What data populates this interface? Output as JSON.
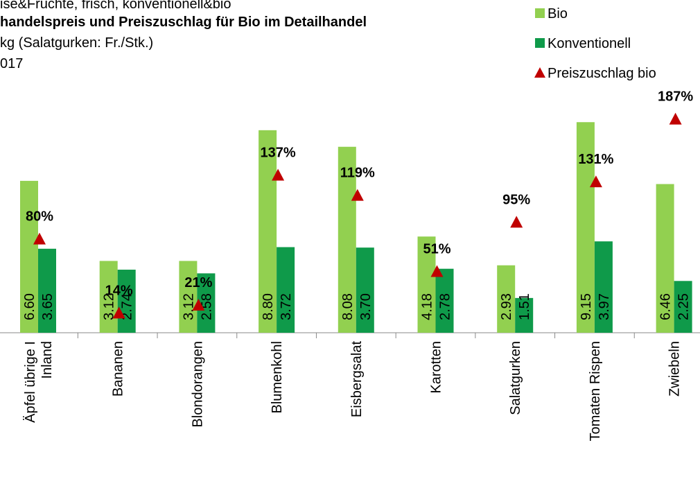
{
  "chart_data": {
    "type": "bar",
    "title_lines": [
      "ise&Früchte, frisch, konventionell&bio",
      "handelspreis und Preiszuschlag für Bio im Detailhandel",
      "kg (Salatgurken: Fr./Stk.)",
      "017"
    ],
    "categories": [
      "Äpfel übrige I\nInland",
      "Bananen",
      "Blondorangen",
      "Blumenkohl",
      "Eisbergsalat",
      "Karotten",
      "Salatgurken",
      "Tomaten Rispen",
      "Zwiebeln"
    ],
    "series": [
      {
        "name": "Bio",
        "color": "#92d050",
        "values": [
          6.6,
          3.12,
          3.12,
          8.8,
          8.08,
          4.18,
          2.93,
          9.15,
          6.46
        ],
        "value_labels": [
          "6.60",
          "3.12",
          "3.12",
          "8.80",
          "8.08",
          "4.18",
          "2.93",
          "9.15",
          "6.46"
        ]
      },
      {
        "name": "Konventionell",
        "color": "#0f9a4a",
        "values": [
          3.65,
          2.74,
          2.58,
          3.72,
          3.7,
          2.78,
          1.51,
          3.97,
          2.25
        ],
        "value_labels": [
          "3.65",
          "2.74",
          "2.58",
          "3.72",
          "3.70",
          "2.78",
          "1.51",
          "3.97",
          "2.25"
        ]
      },
      {
        "name": "Preiszuschlag bio",
        "color": "#c00000",
        "axis": "y2",
        "values": [
          80,
          14,
          21,
          137,
          119,
          51,
          95,
          131,
          187
        ],
        "value_labels": [
          "80%",
          "14%",
          "21%",
          "137%",
          "119%",
          "51%",
          "95%",
          "131%",
          "187%"
        ]
      }
    ]
  }
}
